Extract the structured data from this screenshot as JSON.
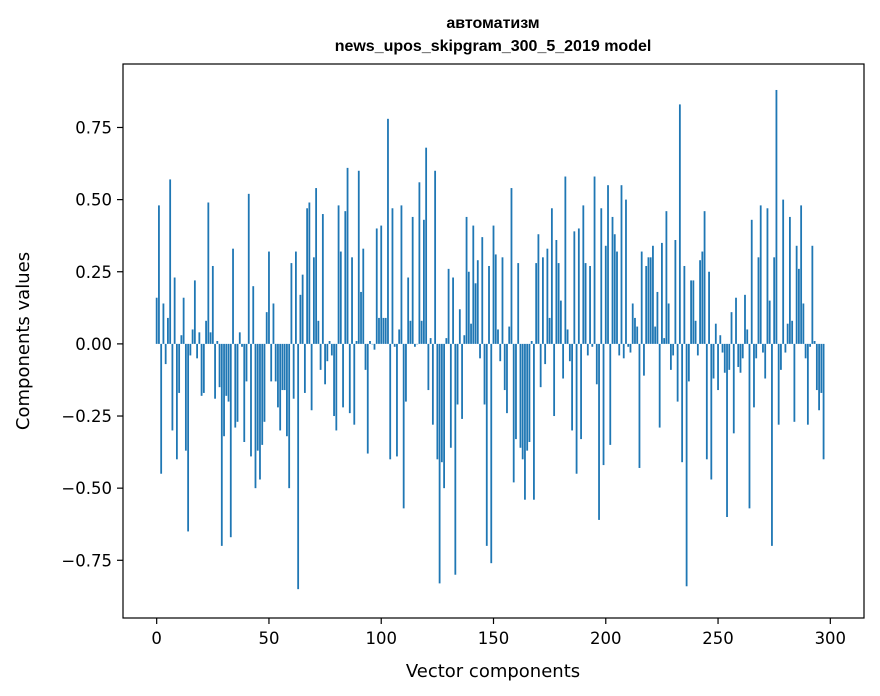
{
  "chart_data": {
    "type": "bar",
    "title_line1": "автоматизм",
    "title_line2": "news_upos_skipgram_300_5_2019 model",
    "xlabel": "Vector components",
    "ylabel": "Components values",
    "xlim": [
      -15,
      315
    ],
    "ylim": [
      -0.95,
      0.97
    ],
    "xticks": [
      0,
      50,
      100,
      150,
      200,
      250,
      300
    ],
    "xtick_labels": [
      "0",
      "50",
      "100",
      "150",
      "200",
      "250",
      "300"
    ],
    "yticks": [
      -0.75,
      -0.5,
      -0.25,
      0.0,
      0.25,
      0.5,
      0.75
    ],
    "ytick_labels": [
      "−0.75",
      "−0.50",
      "−0.25",
      "0.00",
      "0.25",
      "0.50",
      "0.75"
    ],
    "bar_color": "#1f77b4",
    "grid": false,
    "values": [
      0.16,
      0.48,
      -0.45,
      0.14,
      -0.07,
      0.09,
      0.57,
      -0.3,
      0.23,
      -0.4,
      -0.17,
      0.03,
      0.16,
      -0.37,
      -0.65,
      -0.04,
      0.05,
      0.22,
      -0.05,
      0.04,
      -0.18,
      -0.17,
      0.08,
      0.49,
      0.04,
      0.27,
      -0.19,
      0.01,
      -0.15,
      -0.7,
      -0.32,
      -0.18,
      -0.2,
      -0.67,
      0.33,
      -0.29,
      -0.27,
      0.04,
      -0.01,
      -0.34,
      -0.13,
      0.52,
      -0.39,
      0.2,
      -0.5,
      -0.37,
      -0.47,
      -0.35,
      -0.27,
      0.11,
      0.32,
      -0.13,
      0.14,
      -0.13,
      -0.22,
      -0.3,
      -0.16,
      -0.16,
      -0.32,
      -0.5,
      0.28,
      -0.19,
      0.32,
      -0.85,
      0.17,
      0.24,
      -0.17,
      0.47,
      0.49,
      -0.23,
      0.3,
      0.54,
      0.08,
      -0.09,
      0.45,
      -0.14,
      -0.06,
      0.01,
      -0.04,
      -0.25,
      -0.3,
      0.48,
      0.32,
      -0.22,
      0.46,
      0.61,
      -0.24,
      0.3,
      -0.28,
      0.01,
      0.6,
      0.18,
      0.33,
      -0.09,
      -0.38,
      0.01,
      0.0,
      -0.02,
      0.4,
      0.09,
      0.41,
      0.09,
      0.09,
      0.78,
      -0.4,
      0.47,
      -0.01,
      -0.39,
      0.05,
      0.48,
      -0.57,
      -0.2,
      0.23,
      0.08,
      0.44,
      -0.01,
      0.0,
      0.56,
      0.08,
      0.43,
      0.68,
      -0.16,
      0.02,
      -0.28,
      0.6,
      -0.4,
      -0.83,
      -0.41,
      -0.5,
      0.02,
      0.26,
      -0.36,
      0.23,
      -0.8,
      -0.21,
      0.12,
      -0.26,
      0.03,
      0.44,
      0.25,
      0.07,
      0.41,
      0.21,
      0.29,
      -0.05,
      0.37,
      -0.21,
      -0.7,
      0.27,
      -0.76,
      0.41,
      0.31,
      0.05,
      -0.06,
      0.3,
      -0.16,
      -0.24,
      0.06,
      0.54,
      -0.48,
      -0.33,
      0.28,
      -0.36,
      -0.4,
      -0.54,
      -0.37,
      -0.34,
      0.01,
      -0.54,
      0.28,
      0.38,
      -0.15,
      0.3,
      -0.07,
      0.33,
      0.09,
      0.47,
      -0.25,
      0.36,
      0.28,
      0.15,
      -0.12,
      0.58,
      0.05,
      -0.06,
      -0.3,
      0.39,
      -0.45,
      0.4,
      -0.33,
      0.48,
      0.28,
      -0.04,
      0.27,
      -0.01,
      0.58,
      -0.14,
      -0.61,
      0.47,
      -0.42,
      0.34,
      0.55,
      -0.35,
      0.44,
      0.38,
      0.32,
      -0.04,
      0.55,
      -0.05,
      0.5,
      -0.01,
      -0.03,
      0.14,
      0.09,
      0.06,
      -0.43,
      0.32,
      -0.11,
      0.27,
      0.3,
      0.3,
      0.34,
      0.06,
      0.18,
      -0.29,
      0.35,
      0.02,
      0.46,
      0.14,
      -0.09,
      -0.04,
      0.36,
      -0.2,
      0.83,
      -0.41,
      0.27,
      -0.84,
      -0.13,
      0.22,
      0.22,
      0.08,
      -0.04,
      0.29,
      0.32,
      0.46,
      -0.4,
      0.25,
      -0.47,
      -0.12,
      0.07,
      -0.16,
      0.03,
      -0.03,
      -0.1,
      -0.6,
      -0.09,
      0.11,
      -0.31,
      0.16,
      -0.08,
      -0.1,
      -0.05,
      0.17,
      0.05,
      -0.57,
      0.43,
      -0.22,
      -0.05,
      0.3,
      0.48,
      -0.03,
      -0.12,
      0.47,
      0.15,
      -0.7,
      0.3,
      0.88,
      -0.28,
      -0.09,
      0.5,
      -0.03,
      0.07,
      0.44,
      0.08,
      -0.27,
      0.34,
      0.26,
      0.48,
      0.14,
      -0.05,
      -0.28,
      -0.01,
      0.34,
      0.01,
      -0.16,
      -0.23,
      -0.17,
      -0.4
    ]
  }
}
